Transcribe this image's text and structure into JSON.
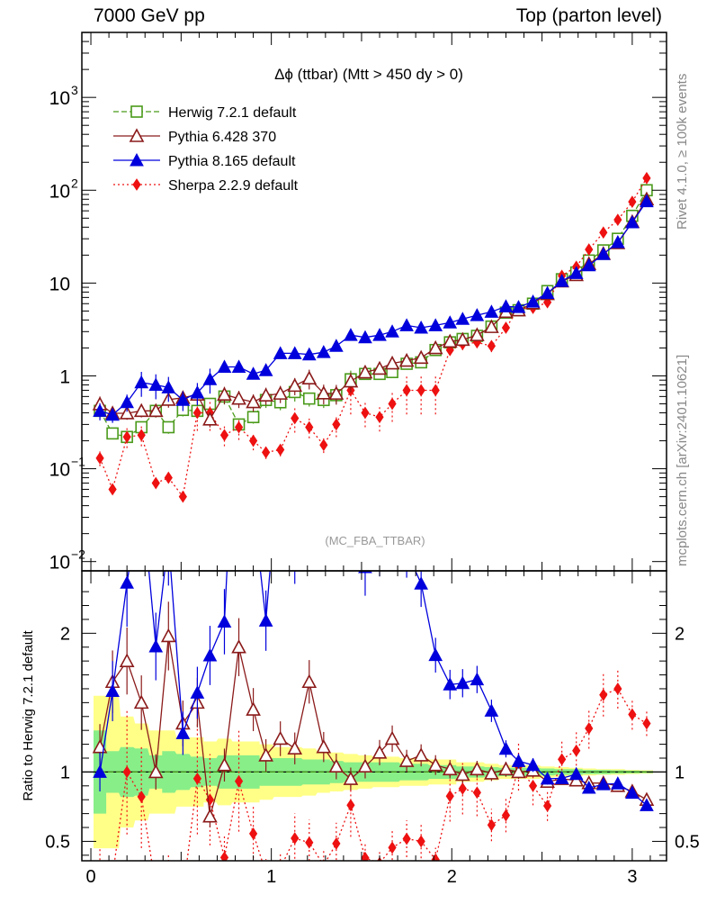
{
  "header": {
    "left": "7000 GeV pp",
    "right": "Top (parton level)"
  },
  "side_labels": {
    "rivet": "Rivet 4.1.0, ≥ 100k events",
    "mcplots": "mcplots.cern.ch [arXiv:2401.10621]"
  },
  "chart_data": {
    "type": "line",
    "title": "Δϕ (ttbar) (Mtt > 450 dy > 0)",
    "watermark": "(MC_FBA_TTBAR)",
    "xlabel": "",
    "ylabel_main": "",
    "ylabel_ratio": "Ratio to Herwig 7.2.1 default",
    "xlim": [
      -0.05,
      3.19
    ],
    "ylim_main_log10": [
      -2.1,
      3.7
    ],
    "ylim_ratio": [
      0.36,
      2.45
    ],
    "x_ticks": [
      "0",
      "1",
      "2",
      "3"
    ],
    "y_ticks_main": [
      {
        "v": 0.01,
        "base": "10",
        "exp": "−2"
      },
      {
        "v": 0.1,
        "base": "10",
        "exp": "−1"
      },
      {
        "v": 1,
        "base": "1",
        "exp": ""
      },
      {
        "v": 10,
        "base": "10",
        "exp": ""
      },
      {
        "v": 100,
        "base": "10",
        "exp": "2"
      },
      {
        "v": 1000,
        "base": "10",
        "exp": "3"
      }
    ],
    "y_ticks_ratio": [
      {
        "v": 0.5,
        "label": "0.5"
      },
      {
        "v": 1,
        "label": "1"
      },
      {
        "v": 2,
        "label": "2"
      }
    ],
    "x": [
      0.05,
      0.12,
      0.2,
      0.28,
      0.36,
      0.43,
      0.51,
      0.59,
      0.66,
      0.74,
      0.82,
      0.9,
      0.97,
      1.05,
      1.13,
      1.21,
      1.29,
      1.36,
      1.44,
      1.52,
      1.6,
      1.67,
      1.75,
      1.83,
      1.91,
      1.99,
      2.06,
      2.14,
      2.22,
      2.3,
      2.37,
      2.45,
      2.53,
      2.61,
      2.69,
      2.76,
      2.84,
      2.92,
      3.0,
      3.08
    ],
    "legend": [
      "Herwig 7.2.1 default",
      "Pythia 6.428 370",
      "Pythia 8.165 default",
      "Sherpa 2.2.9 default"
    ],
    "series": [
      {
        "name": "Herwig 7.2.1 default",
        "color": "#4a9a1a",
        "marker": "open-square",
        "values": [
          0.42,
          0.24,
          0.22,
          0.28,
          0.42,
          0.28,
          0.43,
          0.42,
          0.5,
          0.6,
          0.3,
          0.36,
          0.55,
          0.52,
          0.67,
          0.57,
          0.55,
          0.62,
          0.92,
          1.05,
          1.05,
          1.1,
          1.35,
          1.4,
          1.9,
          2.3,
          2.5,
          2.7,
          3.4,
          4.8,
          5.1,
          6.0,
          8.2,
          11.0,
          13.0,
          17.5,
          22.5,
          30.0,
          53.0,
          100.0
        ],
        "errors": [
          0.06,
          0.04,
          0.04,
          0.04,
          0.05,
          0.05,
          0.05,
          0.05,
          0.05,
          0.06,
          0.05,
          0.05,
          0.06,
          0.06,
          0.07,
          0.06,
          0.06,
          0.06,
          0.08,
          0.08,
          0.08,
          0.08,
          0.1,
          0.1,
          0.12,
          0.14,
          0.15,
          0.15,
          0.18,
          0.2,
          0.2,
          0.25,
          0.3,
          0.4,
          0.5,
          0.6,
          0.8,
          1.0,
          1.5,
          2.5
        ]
      },
      {
        "name": "Pythia 6.428 370",
        "color": "#8b1a1a",
        "marker": "open-triangle",
        "ratio_values": [
          1.18,
          1.65,
          1.8,
          1.5,
          1.0,
          1.98,
          1.35,
          1.5,
          0.68,
          1.05,
          1.9,
          1.45,
          1.12,
          1.24,
          1.17,
          1.65,
          1.18,
          1.04,
          0.95,
          1.04,
          1.14,
          1.24,
          1.08,
          1.12,
          1.05,
          1.02,
          0.98,
          1.02,
          0.99,
          1.02,
          1.0,
          1.01,
          0.93,
          0.95,
          0.94,
          0.92,
          0.92,
          0.9,
          0.86,
          0.8
        ],
        "errors": [
          0.07,
          0.05,
          0.05,
          0.05,
          0.05,
          0.06,
          0.06,
          0.06,
          0.06,
          0.07,
          0.07,
          0.07,
          0.07,
          0.07,
          0.07,
          0.08,
          0.08,
          0.08,
          0.08,
          0.08,
          0.09,
          0.09,
          0.1,
          0.1,
          0.12,
          0.14,
          0.15,
          0.15,
          0.18,
          0.2,
          0.2,
          0.25,
          0.3,
          0.4,
          0.5,
          0.6,
          0.8,
          1.0,
          1.5,
          2.5
        ]
      },
      {
        "name": "Pythia 8.165 default",
        "color": "#0000dd",
        "marker": "filled-triangle",
        "values": [
          0.42,
          0.38,
          0.52,
          0.85,
          0.8,
          0.75,
          0.55,
          0.66,
          0.92,
          1.25,
          1.25,
          1.05,
          1.15,
          1.75,
          1.75,
          1.7,
          1.8,
          2.1,
          2.75,
          2.6,
          2.75,
          3.0,
          3.5,
          3.3,
          3.5,
          3.75,
          4.1,
          4.5,
          4.9,
          5.6,
          5.5,
          6.3,
          7.8,
          10.5,
          12.8,
          15.5,
          20.5,
          27.5,
          45.0,
          76.0
        ],
        "errors": [
          0.07,
          0.06,
          0.07,
          0.1,
          0.1,
          0.1,
          0.08,
          0.09,
          0.1,
          0.12,
          0.12,
          0.12,
          0.12,
          0.15,
          0.15,
          0.15,
          0.15,
          0.17,
          0.2,
          0.2,
          0.2,
          0.22,
          0.25,
          0.25,
          0.25,
          0.27,
          0.3,
          0.3,
          0.32,
          0.35,
          0.35,
          0.4,
          0.45,
          0.6,
          0.7,
          0.8,
          1.0,
          1.3,
          2.0,
          3.0
        ]
      },
      {
        "name": "Sherpa 2.2.9 default",
        "color": "#ee1111",
        "marker": "filled-diamond",
        "values": [
          0.13,
          0.06,
          0.22,
          0.23,
          0.07,
          0.08,
          0.05,
          0.4,
          0.4,
          0.23,
          0.28,
          0.2,
          0.15,
          0.16,
          0.35,
          0.28,
          0.18,
          0.3,
          0.7,
          0.4,
          0.36,
          0.5,
          0.7,
          0.7,
          0.7,
          1.9,
          2.2,
          2.3,
          2.1,
          3.3,
          5.3,
          5.4,
          6.2,
          12.0,
          15.0,
          23.0,
          35.0,
          48.0,
          75.0,
          135.0
        ],
        "errors": [
          0.06,
          0.03,
          0.08,
          0.08,
          0.03,
          0.03,
          0.03,
          0.12,
          0.12,
          0.08,
          0.09,
          0.07,
          0.05,
          0.05,
          0.1,
          0.08,
          0.06,
          0.09,
          0.15,
          0.1,
          0.1,
          0.12,
          0.15,
          0.15,
          0.15,
          0.25,
          0.3,
          0.3,
          0.3,
          0.4,
          0.5,
          0.5,
          0.6,
          1.0,
          1.2,
          1.6,
          2.2,
          3.0,
          4.0,
          6.0
        ]
      }
    ],
    "ratio_band_green": [
      0.3,
      0.15,
      0.18,
      0.17,
      0.12,
      0.15,
      0.13,
      0.11,
      0.1,
      0.12,
      0.12,
      0.12,
      0.1,
      0.1,
      0.1,
      0.09,
      0.09,
      0.08,
      0.07,
      0.07,
      0.07,
      0.07,
      0.06,
      0.06,
      0.05,
      0.05,
      0.04,
      0.04,
      0.035,
      0.03,
      0.03,
      0.03,
      0.025,
      0.02,
      0.02,
      0.015,
      0.015,
      0.012,
      0.01,
      0.008
    ],
    "ratio_band_yellow": [
      0.55,
      0.55,
      0.4,
      0.35,
      0.3,
      0.3,
      0.25,
      0.25,
      0.22,
      0.24,
      0.22,
      0.22,
      0.2,
      0.18,
      0.18,
      0.17,
      0.15,
      0.14,
      0.13,
      0.12,
      0.11,
      0.11,
      0.1,
      0.1,
      0.09,
      0.09,
      0.07,
      0.07,
      0.06,
      0.05,
      0.05,
      0.05,
      0.04,
      0.035,
      0.03,
      0.025,
      0.02,
      0.02,
      0.015,
      0.012
    ]
  }
}
